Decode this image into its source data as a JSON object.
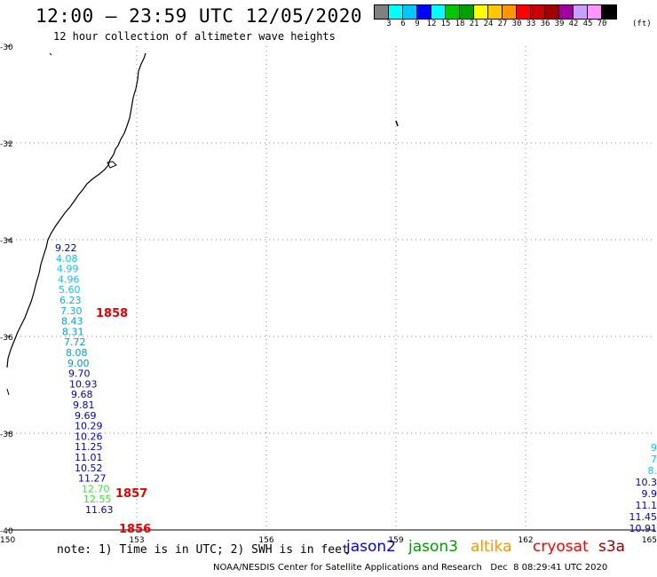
{
  "title": "12:00 – 23:59 UTC 12/05/2020",
  "subtitle": "12 hour collection of altimeter wave heights",
  "colorbar": {
    "colors": [
      "#808080",
      "#00ffff",
      "#00c8ff",
      "#0000ff",
      "#00ffff",
      "#00c800",
      "#00a000",
      "#ffff00",
      "#ffc800",
      "#ff9600",
      "#ff0000",
      "#c80000",
      "#a00000",
      "#a000a0",
      "#c8a0ff",
      "#ff96ff",
      "#000000"
    ],
    "labels": [
      "3",
      "6",
      "9",
      "12",
      "15",
      "18",
      "21",
      "24",
      "27",
      "30",
      "33",
      "36",
      "39",
      "42",
      "45",
      "70"
    ],
    "unit": "(ft)"
  },
  "axes": {
    "lon_labels": [
      "150",
      "153",
      "156",
      "159",
      "162",
      "165"
    ],
    "lat_labels": [
      "-30",
      "-32",
      "-34",
      "-36",
      "-38",
      "-40"
    ]
  },
  "track_left": {
    "values": [
      {
        "v": "9.22",
        "c": "#0000c8"
      },
      {
        "v": "4.08",
        "c": "#00c8ff"
      },
      {
        "v": "4.99",
        "c": "#00c8ff"
      },
      {
        "v": "4.96",
        "c": "#00c8ff"
      },
      {
        "v": "5.60",
        "c": "#00c8ff"
      },
      {
        "v": "6.23",
        "c": "#00b4e6"
      },
      {
        "v": "7.30",
        "c": "#00b4e6"
      },
      {
        "v": "8.43",
        "c": "#00a0d2"
      },
      {
        "v": "8.31",
        "c": "#00a0d2"
      },
      {
        "v": "7.72",
        "c": "#00a0d2"
      },
      {
        "v": "8.08",
        "c": "#00a0d2"
      },
      {
        "v": "9.00",
        "c": "#0096c8"
      },
      {
        "v": "9.70",
        "c": "#0000c8"
      },
      {
        "v": "10.93",
        "c": "#0000c8"
      },
      {
        "v": "9.68",
        "c": "#0000c8"
      },
      {
        "v": "9.81",
        "c": "#0000c8"
      },
      {
        "v": "9.69",
        "c": "#0000c8"
      },
      {
        "v": "10.29",
        "c": "#0000c8"
      },
      {
        "v": "10.26",
        "c": "#0000c8"
      },
      {
        "v": "11.25",
        "c": "#0000c8"
      },
      {
        "v": "11.01",
        "c": "#0000c8"
      },
      {
        "v": "10.52",
        "c": "#0000c8"
      },
      {
        "v": "11.27",
        "c": "#0000c8"
      },
      {
        "v": "12.70",
        "c": "#32e632"
      },
      {
        "v": "12.55",
        "c": "#32e632"
      },
      {
        "v": "11.63",
        "c": "#0000c8"
      }
    ],
    "times": [
      "1858",
      "1857",
      "1856"
    ]
  },
  "track_right": {
    "values": [
      {
        "v": "9",
        "c": "#00c8ff"
      },
      {
        "v": "7",
        "c": "#00c8ff"
      },
      {
        "v": "8.",
        "c": "#00c8ff"
      },
      {
        "v": "10.3",
        "c": "#0000c8"
      },
      {
        "v": "9.9",
        "c": "#0000c8"
      },
      {
        "v": "11.1",
        "c": "#0000c8"
      },
      {
        "v": "11.45",
        "c": "#0000c8"
      },
      {
        "v": "10.91",
        "c": "#0000c8"
      }
    ]
  },
  "note": "note: 1) Time is in UTC; 2) SWH is in feet",
  "satellites": [
    {
      "name": "jason2",
      "color": "#0000ff"
    },
    {
      "name": "jason3",
      "color": "#00a000"
    },
    {
      "name": "altika",
      "color": "#ff9600"
    },
    {
      "name": "cryosat",
      "color": "#ff0000"
    },
    {
      "name": "s3a",
      "color": "#a00000"
    }
  ],
  "footer": "NOAA/NESDIS Center for Satellite Applications and Research   Dec  8 08:29:41 UTC 2020"
}
